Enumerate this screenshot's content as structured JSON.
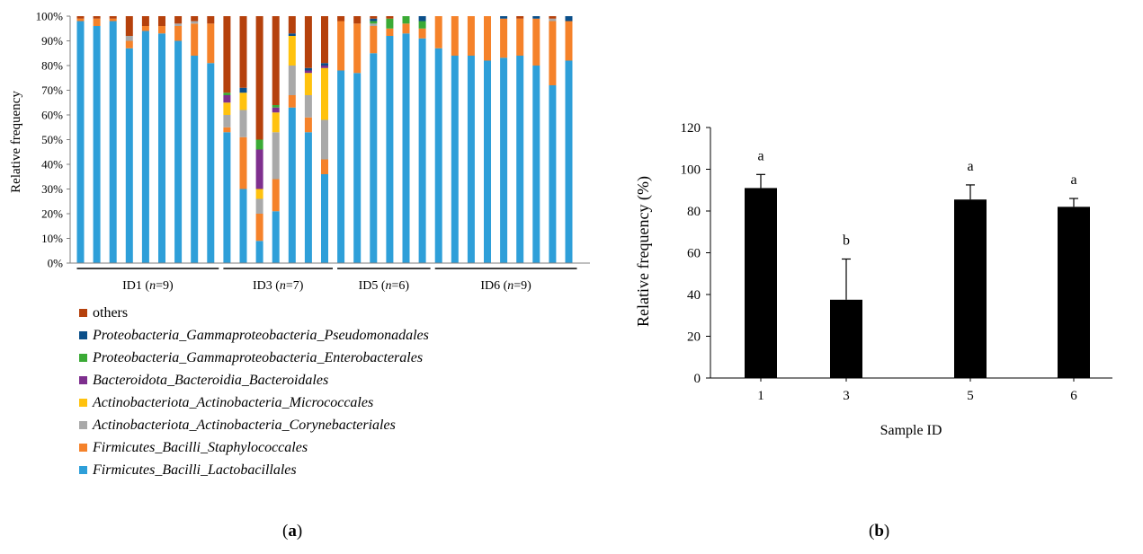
{
  "chart_data": [
    {
      "panel": "a",
      "type": "bar",
      "subtype": "stacked-100-percent",
      "title": "",
      "xlabel": "",
      "ylabel": "Relative frequency",
      "ylim": [
        0,
        100
      ],
      "yticks": [
        "0%",
        "10%",
        "20%",
        "30%",
        "40%",
        "50%",
        "60%",
        "70%",
        "80%",
        "90%",
        "100%"
      ],
      "grid": false,
      "legend_position": "bottom-left",
      "groups": [
        {
          "label": "ID1 (n=9)",
          "name": "ID1",
          "n": "n",
          "count": "=9",
          "size": 9
        },
        {
          "label": "ID3 (n=7)",
          "name": "ID3",
          "n": "n",
          "count": "=7",
          "size": 7
        },
        {
          "label": "ID5 (n=6)",
          "name": "ID5",
          "n": "n",
          "count": "=6",
          "size": 6
        },
        {
          "label": "ID6 (n=9)",
          "name": "ID6",
          "n": "n",
          "count": "=9",
          "size": 9
        }
      ],
      "series": [
        {
          "name": "Firmicutes_Bacilli_Lactobacillales",
          "color": "#2e9fd9",
          "values": [
            98,
            96,
            98,
            87,
            94,
            93,
            90,
            84,
            81,
            53,
            30,
            9,
            21,
            63,
            53,
            36,
            78,
            77,
            85,
            92,
            93,
            91,
            87,
            84,
            84,
            82,
            84,
            84,
            80,
            72,
            82
          ]
        },
        {
          "name": "Firmicutes_Bacilli_Staphylococcales",
          "color": "#f5822a",
          "values": [
            1,
            3,
            1,
            3,
            2,
            3,
            6,
            13,
            16,
            2,
            21,
            11,
            13,
            5,
            6,
            6,
            20,
            20,
            11,
            3,
            4,
            4,
            13,
            16,
            16,
            18,
            16,
            15,
            19,
            26,
            16
          ]
        },
        {
          "name": "Actinobacteriota_Actinobacteria_Corynebacteriales",
          "color": "#a9a9a9",
          "values": [
            0,
            0,
            0,
            2,
            0,
            0,
            1,
            1,
            0,
            5,
            11,
            6,
            19,
            12,
            9,
            16,
            0,
            0,
            1,
            0,
            0,
            0,
            0,
            0,
            0,
            0,
            0,
            0,
            0,
            1,
            0
          ]
        },
        {
          "name": "Actinobacteriota_Actinobacteria_Micrococcales",
          "color": "#ffc20e",
          "values": [
            0,
            0,
            0,
            0,
            0,
            0,
            0,
            0,
            0,
            5,
            7,
            4,
            8,
            12,
            9,
            21,
            0,
            0,
            0,
            0,
            0,
            0,
            0,
            0,
            0,
            0,
            0,
            0,
            0,
            0,
            0
          ]
        },
        {
          "name": "Bacteroidota_Bacteroidia_Bacteroidales",
          "color": "#7e2f8e",
          "values": [
            0,
            0,
            0,
            0,
            0,
            0,
            0,
            0,
            0,
            3,
            0,
            16,
            2,
            0,
            1,
            1,
            0,
            0,
            0,
            0,
            0,
            0,
            0,
            0,
            0,
            0,
            0,
            0,
            0,
            0,
            0
          ]
        },
        {
          "name": "Proteobacteria_Gammaproteobacteria_Enterobacterales",
          "color": "#3aaa35",
          "values": [
            0,
            0,
            0,
            0,
            0,
            0,
            0,
            0,
            0,
            1,
            0,
            4,
            1,
            0,
            0,
            0,
            0,
            0,
            1,
            4,
            3,
            3,
            0,
            0,
            0,
            0,
            0,
            0,
            0,
            0,
            0
          ]
        },
        {
          "name": "Proteobacteria_Gammaproteobacteria_Pseudomonadales",
          "color": "#0b4f8a",
          "values": [
            0,
            0,
            0,
            0,
            0,
            0,
            0,
            0,
            0,
            0,
            2,
            0,
            0,
            1,
            1,
            1,
            0,
            0,
            1,
            0,
            0,
            2,
            0,
            0,
            0,
            0,
            1,
            0,
            1,
            0,
            2
          ]
        },
        {
          "name": "others",
          "color": "#b5410c",
          "values": [
            1,
            1,
            1,
            8,
            4,
            4,
            3,
            2,
            3,
            31,
            29,
            50,
            36,
            7,
            21,
            19,
            2,
            3,
            1,
            1,
            0,
            0,
            0,
            0,
            0,
            0,
            0,
            1,
            0,
            1,
            0
          ]
        }
      ]
    },
    {
      "panel": "b",
      "type": "bar",
      "title": "",
      "xlabel": "Sample ID",
      "ylabel": "Relative frequency  (%)",
      "ylim": [
        0,
        120
      ],
      "yticks": [
        0,
        20,
        40,
        60,
        80,
        100,
        120
      ],
      "grid": false,
      "categories": [
        "1",
        "3",
        "5",
        "6"
      ],
      "values": [
        91,
        37.5,
        85.5,
        82
      ],
      "errors": [
        6.5,
        19.5,
        7,
        4
      ],
      "annotations": [
        "a",
        "b",
        "a",
        "a"
      ],
      "bar_color": "#000000"
    }
  ],
  "labels": {
    "a": {
      "open": "(",
      "letter": "a",
      "close": ")"
    },
    "b": {
      "open": "(",
      "letter": "b",
      "close": ")"
    }
  }
}
